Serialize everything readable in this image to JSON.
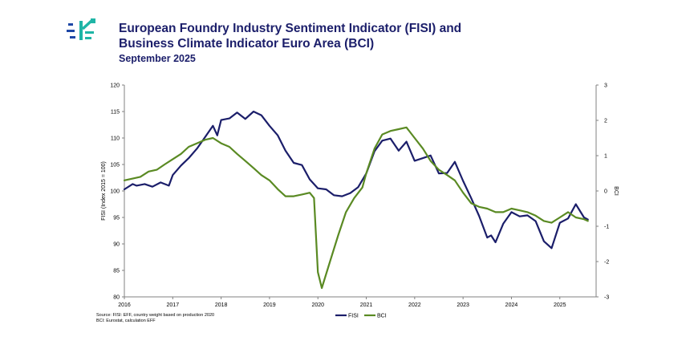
{
  "header": {
    "title_line1": "European Foundry Industry Sentiment Indicator (FISI) and",
    "title_line2": "Business Climate Indicator Euro Area (BCI)",
    "subtitle": "September 2025",
    "logo_icon": "foundry-logo-icon"
  },
  "source": {
    "line1": "Source: FISI: EFF, country weight based on production 2020",
    "line2": "BCI: Eurostat, calculation EFF"
  },
  "chart_data": {
    "type": "line",
    "ylabel": "FISI (Index 2015 = 100)",
    "y2label": "BCI",
    "ylim": [
      80,
      120
    ],
    "y2lim": [
      -3,
      3
    ],
    "yticks": [
      80,
      85,
      90,
      95,
      100,
      105,
      110,
      115,
      120
    ],
    "y2ticks": [
      -3,
      -2,
      -1,
      0,
      1,
      2,
      3
    ],
    "xlim": [
      2016,
      2025.75
    ],
    "xticks": [
      "2016",
      "2017",
      "2018",
      "2019",
      "2020",
      "2021",
      "2022",
      "2023",
      "2024",
      "2025"
    ],
    "grid": false,
    "legend_position": "bottom",
    "series": [
      {
        "name": "FISI",
        "axis": "left",
        "color": "#1b1e6a",
        "points": [
          [
            2016.0,
            100.3
          ],
          [
            2016.17,
            101.3
          ],
          [
            2016.25,
            101.0
          ],
          [
            2016.42,
            101.3
          ],
          [
            2016.58,
            100.8
          ],
          [
            2016.75,
            101.6
          ],
          [
            2016.92,
            101.0
          ],
          [
            2017.0,
            103.0
          ],
          [
            2017.17,
            104.8
          ],
          [
            2017.33,
            106.2
          ],
          [
            2017.5,
            108.0
          ],
          [
            2017.67,
            110.2
          ],
          [
            2017.83,
            112.3
          ],
          [
            2017.92,
            110.5
          ],
          [
            2018.0,
            113.4
          ],
          [
            2018.17,
            113.7
          ],
          [
            2018.33,
            114.8
          ],
          [
            2018.5,
            113.6
          ],
          [
            2018.67,
            115.0
          ],
          [
            2018.83,
            114.3
          ],
          [
            2019.0,
            112.3
          ],
          [
            2019.17,
            110.5
          ],
          [
            2019.33,
            107.6
          ],
          [
            2019.5,
            105.3
          ],
          [
            2019.67,
            104.9
          ],
          [
            2019.83,
            102.2
          ],
          [
            2020.0,
            100.5
          ],
          [
            2020.17,
            100.3
          ],
          [
            2020.33,
            99.2
          ],
          [
            2020.5,
            99.0
          ],
          [
            2020.67,
            99.6
          ],
          [
            2020.83,
            100.7
          ],
          [
            2021.0,
            103.3
          ],
          [
            2021.17,
            107.5
          ],
          [
            2021.33,
            109.5
          ],
          [
            2021.5,
            109.9
          ],
          [
            2021.67,
            107.6
          ],
          [
            2021.83,
            109.3
          ],
          [
            2022.0,
            105.7
          ],
          [
            2022.17,
            106.2
          ],
          [
            2022.33,
            106.7
          ],
          [
            2022.5,
            103.3
          ],
          [
            2022.67,
            103.4
          ],
          [
            2022.83,
            105.5
          ],
          [
            2023.0,
            101.9
          ],
          [
            2023.17,
            98.6
          ],
          [
            2023.33,
            95.3
          ],
          [
            2023.5,
            91.2
          ],
          [
            2023.58,
            91.6
          ],
          [
            2023.67,
            90.3
          ],
          [
            2023.83,
            93.8
          ],
          [
            2024.0,
            96.0
          ],
          [
            2024.17,
            95.2
          ],
          [
            2024.33,
            95.4
          ],
          [
            2024.5,
            94.3
          ],
          [
            2024.67,
            90.5
          ],
          [
            2024.83,
            89.2
          ],
          [
            2025.0,
            94.0
          ],
          [
            2025.17,
            94.8
          ],
          [
            2025.33,
            97.5
          ],
          [
            2025.5,
            95.0
          ],
          [
            2025.58,
            94.6
          ]
        ]
      },
      {
        "name": "BCI",
        "axis": "right",
        "color": "#5a8a23",
        "points": [
          [
            2016.0,
            0.3
          ],
          [
            2016.17,
            0.35
          ],
          [
            2016.33,
            0.4
          ],
          [
            2016.5,
            0.55
          ],
          [
            2016.67,
            0.6
          ],
          [
            2016.83,
            0.75
          ],
          [
            2017.0,
            0.9
          ],
          [
            2017.17,
            1.05
          ],
          [
            2017.33,
            1.25
          ],
          [
            2017.5,
            1.35
          ],
          [
            2017.67,
            1.45
          ],
          [
            2017.83,
            1.5
          ],
          [
            2018.0,
            1.35
          ],
          [
            2018.17,
            1.25
          ],
          [
            2018.33,
            1.05
          ],
          [
            2018.5,
            0.85
          ],
          [
            2018.67,
            0.65
          ],
          [
            2018.83,
            0.45
          ],
          [
            2019.0,
            0.3
          ],
          [
            2019.17,
            0.05
          ],
          [
            2019.33,
            -0.15
          ],
          [
            2019.5,
            -0.15
          ],
          [
            2019.67,
            -0.1
          ],
          [
            2019.83,
            -0.05
          ],
          [
            2019.92,
            -0.2
          ],
          [
            2020.0,
            -2.3
          ],
          [
            2020.08,
            -2.75
          ],
          [
            2020.25,
            -2.0
          ],
          [
            2020.42,
            -1.25
          ],
          [
            2020.58,
            -0.6
          ],
          [
            2020.75,
            -0.2
          ],
          [
            2020.92,
            0.1
          ],
          [
            2021.0,
            0.5
          ],
          [
            2021.17,
            1.2
          ],
          [
            2021.33,
            1.6
          ],
          [
            2021.5,
            1.7
          ],
          [
            2021.67,
            1.75
          ],
          [
            2021.83,
            1.8
          ],
          [
            2022.0,
            1.5
          ],
          [
            2022.17,
            1.2
          ],
          [
            2022.33,
            0.85
          ],
          [
            2022.5,
            0.6
          ],
          [
            2022.67,
            0.45
          ],
          [
            2022.83,
            0.3
          ],
          [
            2023.0,
            -0.05
          ],
          [
            2023.17,
            -0.35
          ],
          [
            2023.33,
            -0.45
          ],
          [
            2023.5,
            -0.5
          ],
          [
            2023.67,
            -0.6
          ],
          [
            2023.83,
            -0.6
          ],
          [
            2024.0,
            -0.5
          ],
          [
            2024.17,
            -0.55
          ],
          [
            2024.33,
            -0.6
          ],
          [
            2024.5,
            -0.7
          ],
          [
            2024.67,
            -0.85
          ],
          [
            2024.83,
            -0.9
          ],
          [
            2025.0,
            -0.75
          ],
          [
            2025.17,
            -0.6
          ],
          [
            2025.33,
            -0.75
          ],
          [
            2025.5,
            -0.8
          ],
          [
            2025.58,
            -0.85
          ]
        ]
      }
    ]
  }
}
